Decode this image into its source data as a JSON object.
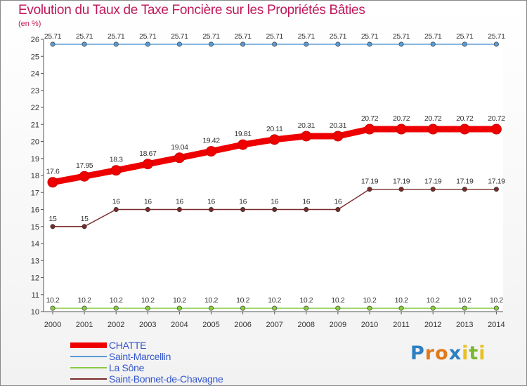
{
  "chart_data": {
    "type": "line",
    "title": "Evolution du Taux de Taxe Foncière sur les Propriétés Bâties",
    "ylabel": "(en %)",
    "xlabel": "",
    "x": [
      "2000",
      "2001",
      "2002",
      "2003",
      "2004",
      "2005",
      "2006",
      "2007",
      "2008",
      "2009",
      "2010",
      "2011",
      "2012",
      "2013",
      "2014"
    ],
    "ylim": [
      10,
      26
    ],
    "yticks": [
      "10",
      "11",
      "12",
      "13",
      "14",
      "15",
      "16",
      "17",
      "18",
      "19",
      "20",
      "21",
      "22",
      "23",
      "24",
      "25",
      "26"
    ],
    "series": [
      {
        "name": "CHATTE",
        "color": "#ee0000",
        "values": [
          17.6,
          17.95,
          18.3,
          18.67,
          19.04,
          19.42,
          19.81,
          20.11,
          20.31,
          20.31,
          20.72,
          20.72,
          20.72,
          20.72,
          20.72
        ],
        "labels": [
          "17.6",
          "17.95",
          "18.3",
          "18.67",
          "19.04",
          "19.42",
          "19.81",
          "20.11",
          "20.31",
          "20.31",
          "20.72",
          "20.72",
          "20.72",
          "20.72",
          "20.72"
        ]
      },
      {
        "name": "Saint-Marcellin",
        "color": "#5b9bd5",
        "values": [
          25.71,
          25.71,
          25.71,
          25.71,
          25.71,
          25.71,
          25.71,
          25.71,
          25.71,
          25.71,
          25.71,
          25.71,
          25.71,
          25.71,
          25.71
        ],
        "labels": [
          "25.71",
          "25.71",
          "25.71",
          "25.71",
          "25.71",
          "25.71",
          "25.71",
          "25.71",
          "25.71",
          "25.71",
          "25.71",
          "25.71",
          "25.71",
          "25.71",
          "25.71"
        ]
      },
      {
        "name": "La Sône",
        "color": "#88cc44",
        "values": [
          10.2,
          10.2,
          10.2,
          10.2,
          10.2,
          10.2,
          10.2,
          10.2,
          10.2,
          10.2,
          10.2,
          10.2,
          10.2,
          10.2,
          10.2
        ],
        "labels": [
          "10.2",
          "10.2",
          "10.2",
          "10.2",
          "10.2",
          "10.2",
          "10.2",
          "10.2",
          "10.2",
          "10.2",
          "10.2",
          "10.2",
          "10.2",
          "10.2",
          "10.2"
        ]
      },
      {
        "name": "Saint-Bonnet-de-Chavagne",
        "color": "#7a2a2a",
        "values": [
          15,
          15,
          16,
          16,
          16,
          16,
          16,
          16,
          16,
          16,
          17.19,
          17.19,
          17.19,
          17.19,
          17.19
        ],
        "labels": [
          "15",
          "15",
          "16",
          "16",
          "16",
          "16",
          "16",
          "16",
          "16",
          "16",
          "17.19",
          "17.19",
          "17.19",
          "17.19",
          "17.19"
        ]
      }
    ]
  },
  "logo": {
    "letters": [
      "P",
      "r",
      "o",
      "x",
      "i",
      "t",
      "i"
    ],
    "colors": [
      "#2c7fc0",
      "#e07a1b",
      "#e07a1b",
      "#2c7fc0",
      "#e8c020",
      "#7ab82e",
      "#e8c020"
    ]
  }
}
